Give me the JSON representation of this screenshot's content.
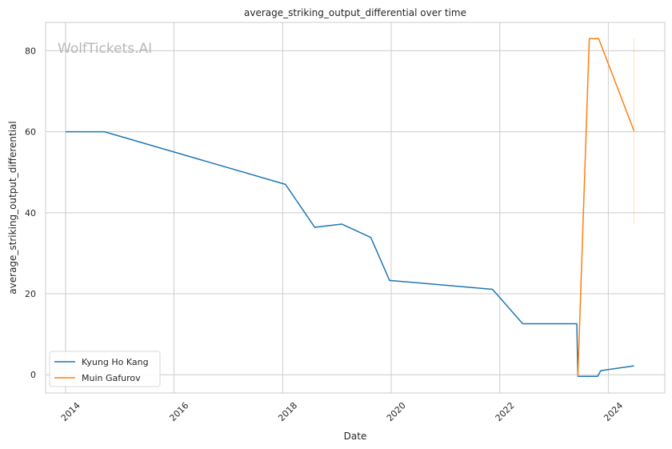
{
  "watermark": "WolfTickets.AI",
  "chart_data": {
    "type": "line",
    "title": "average_striking_output_differential over time",
    "xlabel": "Date",
    "ylabel": "average_striking_output_differential",
    "x_ticks": [
      "2014",
      "2016",
      "2018",
      "2020",
      "2022",
      "2024"
    ],
    "y_ticks": [
      0,
      20,
      40,
      60,
      80
    ],
    "xlim": [
      "2013-08-20",
      "2025-01-15"
    ],
    "ylim": [
      -4.5,
      87
    ],
    "grid": true,
    "legend_position": "lower-left",
    "series": [
      {
        "name": "Kyung Ho Kang",
        "color": "#1f77b4",
        "points": [
          [
            "2014-01-01",
            60.0
          ],
          [
            "2014-09-20",
            60.0
          ],
          [
            "2018-01-20",
            47.0
          ],
          [
            "2018-08-05",
            36.4
          ],
          [
            "2019-02-02",
            37.2
          ],
          [
            "2019-08-17",
            33.9
          ],
          [
            "2019-12-21",
            23.3
          ],
          [
            "2021-11-13",
            21.1
          ],
          [
            "2022-06-04",
            12.6
          ],
          [
            "2023-06-03",
            12.6
          ],
          [
            "2023-06-10",
            -0.4
          ],
          [
            "2023-10-21",
            -0.4
          ],
          [
            "2023-11-11",
            1.0
          ],
          [
            "2024-06-22",
            2.2
          ]
        ]
      },
      {
        "name": "Muin Gafurov",
        "color": "#ff7f0e",
        "points": [
          [
            "2023-06-10",
            -0.4
          ],
          [
            "2023-08-26",
            83.0
          ],
          [
            "2023-10-28",
            83.0
          ],
          [
            "2024-06-22",
            60.2
          ]
        ],
        "error_band": {
          "x": "2024-06-22",
          "low": 37.3,
          "high": 83.0
        }
      }
    ]
  }
}
